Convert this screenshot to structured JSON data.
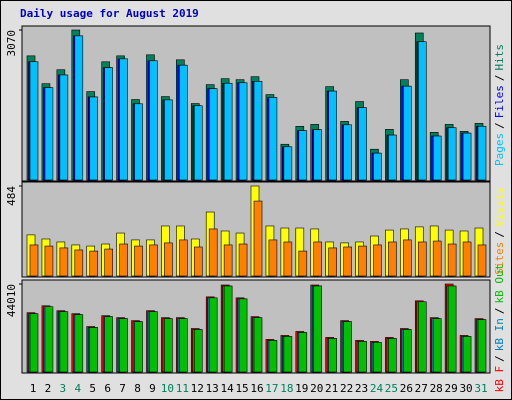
{
  "chart_data": [
    {
      "type": "bar",
      "title": "Daily usage for August 2019",
      "front": "first",
      "ylim": [
        0,
        3070
      ],
      "yticks": [
        3070
      ],
      "series": [
        {
          "name": "Pages",
          "color": "#00c0ff",
          "values": [
            2420,
            1890,
            2150,
            2950,
            1700,
            2300,
            2480,
            1560,
            2440,
            1640,
            2350,
            1520,
            1870,
            1980,
            1990,
            2020,
            1690,
            680,
            1010,
            1030,
            1820,
            1130,
            1480,
            550,
            920,
            1920,
            2830,
            900,
            1070,
            960,
            1100
          ]
        },
        {
          "name": "Files",
          "color": "#0000ff",
          "values": [
            2420,
            1890,
            2150,
            2950,
            1700,
            2300,
            2480,
            1560,
            2440,
            1640,
            2350,
            1520,
            1870,
            1980,
            1990,
            2020,
            1690,
            680,
            1010,
            1030,
            1820,
            1130,
            1480,
            550,
            920,
            1920,
            2830,
            900,
            1070,
            960,
            1100
          ]
        },
        {
          "name": "Hits",
          "color": "#00805c",
          "values": [
            2541,
            1972,
            2257,
            3070,
            1809,
            2419,
            2541,
            1647,
            2562,
            1708,
            2460,
            1565,
            1952,
            2074,
            2053,
            2114,
            1748,
            732,
            1098,
            1138,
            1911,
            1199,
            1606,
            630,
            1037,
            2053,
            3009,
            976,
            1138,
            996,
            1159
          ]
        }
      ]
    },
    {
      "type": "bar",
      "front": "first",
      "ylim": [
        0,
        484
      ],
      "yticks": [
        484
      ],
      "series": [
        {
          "name": "Sites",
          "color": "#ff8000",
          "values": [
            167,
            161,
            151,
            140,
            134,
            145,
            172,
            161,
            167,
            178,
            194,
            156,
            253,
            167,
            172,
            403,
            194,
            183,
            134,
            183,
            151,
            156,
            161,
            167,
            183,
            194,
            183,
            188,
            172,
            183,
            167
          ]
        },
        {
          "name": "Visits",
          "color": "#ffff00",
          "values": [
            221,
            199,
            183,
            167,
            161,
            172,
            231,
            194,
            194,
            269,
            269,
            199,
            344,
            242,
            231,
            484,
            269,
            258,
            258,
            253,
            183,
            178,
            183,
            215,
            247,
            253,
            264,
            269,
            247,
            242,
            258
          ]
        }
      ]
    },
    {
      "type": "bar",
      "front": "last",
      "ylim": [
        0,
        44010
      ],
      "yticks": [
        44010
      ],
      "categories": [
        "1",
        "2",
        "3",
        "4",
        "5",
        "6",
        "7",
        "8",
        "9",
        "10",
        "11",
        "12",
        "13",
        "14",
        "15",
        "16",
        "17",
        "18",
        "19",
        "20",
        "21",
        "22",
        "23",
        "24",
        "25",
        "26",
        "27",
        "28",
        "29",
        "30",
        "31"
      ],
      "category_colors": [
        "#000000",
        "#000000",
        "#00805c",
        "#00805c",
        "#000000",
        "#000000",
        "#000000",
        "#000000",
        "#000000",
        "#00805c",
        "#00805c",
        "#000000",
        "#000000",
        "#000000",
        "#000000",
        "#000000",
        "#00805c",
        "#00805c",
        "#000000",
        "#000000",
        "#000000",
        "#000000",
        "#000000",
        "#00805c",
        "#00805c",
        "#000000",
        "#000000",
        "#000000",
        "#000000",
        "#000000",
        "#00805c"
      ],
      "legend_separator": "/",
      "series": [
        {
          "name": "kB F",
          "color": "#ff0000",
          "values": [
            29670,
            33131,
            30659,
            29175,
            22747,
            28186,
            27197,
            25714,
            30659,
            27197,
            27197,
            21758,
            37582,
            43516,
            37087,
            27692,
            16318,
            18296,
            20274,
            43516,
            17307,
            25714,
            15824,
            15329,
            17307,
            21758,
            35604,
            27197,
            44010,
            18296,
            26703
          ]
        },
        {
          "name": "kB In",
          "color": "#0080c0",
          "values": [
            29176,
            32637,
            30165,
            28681,
            22253,
            27692,
            26703,
            25220,
            30165,
            26703,
            26703,
            21264,
            37088,
            43022,
            36593,
            27198,
            15824,
            17802,
            19780,
            43022,
            16813,
            25220,
            15330,
            14835,
            16813,
            21264,
            35110,
            26703,
            43022,
            17802,
            26209
          ]
        },
        {
          "name": "kB Out",
          "color": "#00c000",
          "values": [
            29176,
            32637,
            30165,
            28681,
            22253,
            27692,
            26703,
            25220,
            30165,
            26703,
            26703,
            21264,
            37088,
            43022,
            36593,
            27198,
            15824,
            17802,
            19780,
            43022,
            16813,
            25220,
            15330,
            14835,
            16813,
            21264,
            35110,
            26703,
            43022,
            17802,
            26209
          ]
        }
      ]
    }
  ]
}
